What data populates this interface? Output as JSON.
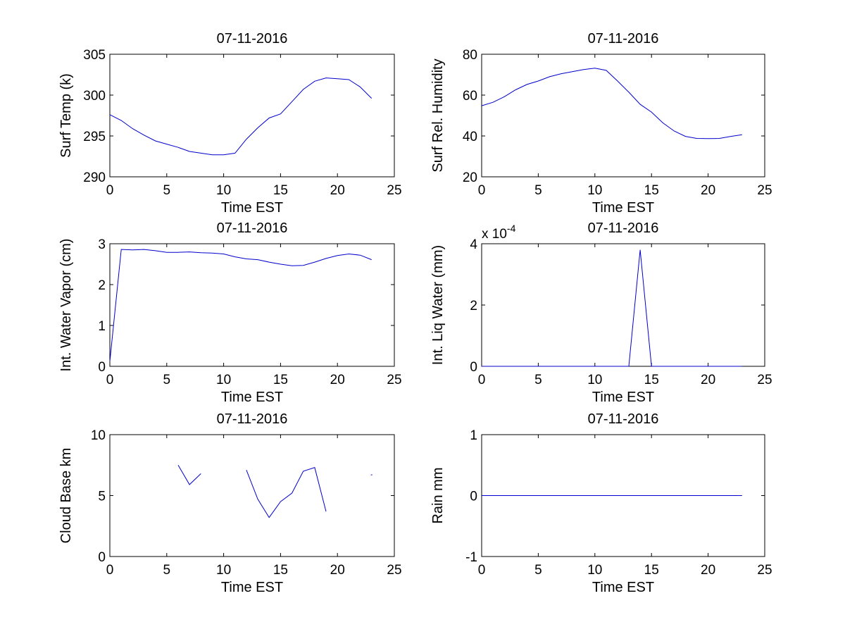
{
  "chart_data": [
    {
      "type": "line",
      "title": "07-11-2016",
      "xlabel": "Time EST",
      "ylabel": "Surf Temp (k)",
      "xlim": [
        0,
        25
      ],
      "ylim": [
        290,
        305
      ],
      "xticks": [
        0,
        5,
        10,
        15,
        20,
        25
      ],
      "yticks": [
        290,
        295,
        300,
        305
      ],
      "xtick_labels": [
        "0",
        "5",
        "10",
        "15",
        "20",
        "25"
      ],
      "ytick_labels": [
        "290",
        "295",
        "300",
        "305"
      ],
      "grid": false,
      "series": [
        {
          "color": "#0000cc",
          "x": [
            0,
            1,
            2,
            3,
            4,
            5,
            6,
            7,
            8,
            9,
            10,
            11,
            12,
            13,
            14,
            15,
            16,
            17,
            18,
            19,
            20,
            21,
            22,
            23
          ],
          "y": [
            297.6,
            296.9,
            295.9,
            295.1,
            294.4,
            294.0,
            293.6,
            293.1,
            292.9,
            292.7,
            292.7,
            292.9,
            294.6,
            296.0,
            297.2,
            297.7,
            299.2,
            300.7,
            301.7,
            302.1,
            302.0,
            301.9,
            301.0,
            299.6
          ]
        }
      ]
    },
    {
      "type": "line",
      "title": "07-11-2016",
      "xlabel": "Time EST",
      "ylabel": "Surf Rel. Humidity",
      "xlim": [
        0,
        25
      ],
      "ylim": [
        20,
        80
      ],
      "xticks": [
        0,
        5,
        10,
        15,
        20,
        25
      ],
      "yticks": [
        20,
        40,
        60,
        80
      ],
      "xtick_labels": [
        "0",
        "5",
        "10",
        "15",
        "20",
        "25"
      ],
      "ytick_labels": [
        "20",
        "40",
        "60",
        "80"
      ],
      "grid": false,
      "series": [
        {
          "color": "#0000cc",
          "x": [
            0,
            1,
            2,
            3,
            4,
            5,
            6,
            7,
            8,
            9,
            10,
            11,
            12,
            13,
            14,
            15,
            16,
            17,
            18,
            19,
            20,
            21,
            22,
            23
          ],
          "y": [
            54.8,
            56.5,
            59.2,
            62.6,
            65.2,
            66.9,
            69.0,
            70.4,
            71.5,
            72.5,
            73.2,
            72.1,
            66.9,
            61.4,
            55.5,
            51.7,
            46.4,
            42.4,
            39.8,
            38.8,
            38.7,
            38.8,
            39.8,
            40.6
          ]
        }
      ]
    },
    {
      "type": "line",
      "title": "07-11-2016",
      "xlabel": "Time EST",
      "ylabel": "Int. Water Vapor (cm)",
      "xlim": [
        0,
        25
      ],
      "ylim": [
        0,
        3
      ],
      "xticks": [
        0,
        5,
        10,
        15,
        20,
        25
      ],
      "yticks": [
        0,
        1,
        2,
        3
      ],
      "xtick_labels": [
        "0",
        "5",
        "10",
        "15",
        "20",
        "25"
      ],
      "ytick_labels": [
        "0",
        "1",
        "2",
        "3"
      ],
      "grid": false,
      "series": [
        {
          "color": "#0000cc",
          "x": [
            0,
            1,
            2,
            3,
            4,
            5,
            6,
            7,
            8,
            9,
            10,
            11,
            12,
            13,
            14,
            15,
            16,
            17,
            18,
            19,
            20,
            21,
            22,
            23
          ],
          "y": [
            0.12,
            2.86,
            2.85,
            2.86,
            2.83,
            2.79,
            2.79,
            2.8,
            2.78,
            2.77,
            2.75,
            2.68,
            2.63,
            2.61,
            2.55,
            2.5,
            2.46,
            2.47,
            2.55,
            2.64,
            2.71,
            2.75,
            2.72,
            2.61
          ]
        }
      ]
    },
    {
      "type": "line",
      "title": "07-11-2016",
      "xlabel": "Time EST",
      "ylabel": "Int. Liq Water (mm)",
      "multiplier_base": "x 10",
      "multiplier_exp": "-4",
      "xlim": [
        0,
        25
      ],
      "ylim": [
        0,
        4
      ],
      "xticks": [
        0,
        5,
        10,
        15,
        20,
        25
      ],
      "yticks": [
        0,
        2,
        4
      ],
      "xtick_labels": [
        "0",
        "5",
        "10",
        "15",
        "20",
        "25"
      ],
      "ytick_labels": [
        "0",
        "2",
        "4"
      ],
      "grid": false,
      "series": [
        {
          "color": "#0000cc",
          "x": [
            0,
            1,
            2,
            3,
            4,
            5,
            6,
            7,
            8,
            9,
            10,
            11,
            12,
            13,
            14,
            15,
            16,
            17,
            18,
            19,
            20,
            21,
            22,
            23
          ],
          "y": [
            0,
            0,
            0,
            0,
            0,
            0,
            0,
            0,
            0,
            0,
            0,
            0,
            0,
            0,
            3.8,
            0,
            0,
            0,
            0,
            0,
            0,
            0,
            0,
            0
          ]
        }
      ]
    },
    {
      "type": "line",
      "title": "07-11-2016",
      "xlabel": "Time EST",
      "ylabel": "Cloud Base km",
      "xlim": [
        0,
        25
      ],
      "ylim": [
        0,
        10
      ],
      "xticks": [
        0,
        5,
        10,
        15,
        20,
        25
      ],
      "yticks": [
        0,
        5,
        10
      ],
      "xtick_labels": [
        "0",
        "5",
        "10",
        "15",
        "20",
        "25"
      ],
      "ytick_labels": [
        "0",
        "5",
        "10"
      ],
      "grid": false,
      "series": [
        {
          "color": "#0000cc",
          "x": [
            0,
            1,
            2,
            3,
            4,
            5,
            6,
            7,
            8,
            9,
            10,
            11,
            12,
            13,
            14,
            15,
            16,
            17,
            18,
            19,
            20,
            21,
            22,
            23
          ],
          "y": [
            null,
            null,
            null,
            null,
            null,
            null,
            7.5,
            5.9,
            6.8,
            null,
            null,
            null,
            7.1,
            4.7,
            3.2,
            4.5,
            5.2,
            7.0,
            7.3,
            3.7,
            null,
            null,
            null,
            6.7
          ]
        }
      ]
    },
    {
      "type": "line",
      "title": "07-11-2016",
      "xlabel": "Time EST",
      "ylabel": "Rain mm",
      "xlim": [
        0,
        25
      ],
      "ylim": [
        -1,
        1
      ],
      "xticks": [
        0,
        5,
        10,
        15,
        20,
        25
      ],
      "yticks": [
        -1,
        0,
        1
      ],
      "xtick_labels": [
        "0",
        "5",
        "10",
        "15",
        "20",
        "25"
      ],
      "ytick_labels": [
        "-1",
        "0",
        "1"
      ],
      "grid": false,
      "series": [
        {
          "color": "#0000cc",
          "x": [
            0,
            1,
            2,
            3,
            4,
            5,
            6,
            7,
            8,
            9,
            10,
            11,
            12,
            13,
            14,
            15,
            16,
            17,
            18,
            19,
            20,
            21,
            22,
            23
          ],
          "y": [
            0,
            0,
            0,
            0,
            0,
            0,
            0,
            0,
            0,
            0,
            0,
            0,
            0,
            0,
            0,
            0,
            0,
            0,
            0,
            0,
            0,
            0,
            0,
            0
          ]
        }
      ]
    }
  ]
}
